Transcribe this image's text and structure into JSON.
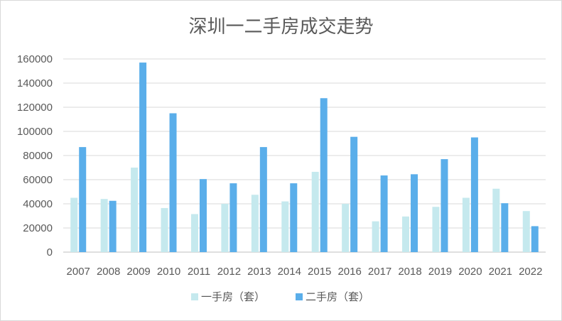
{
  "chart_data": {
    "type": "bar",
    "title": "深圳一二手房成交走势",
    "categories": [
      "2007",
      "2008",
      "2009",
      "2010",
      "2011",
      "2012",
      "2013",
      "2014",
      "2015",
      "2016",
      "2017",
      "2018",
      "2019",
      "2020",
      "2021",
      "2022"
    ],
    "series": [
      {
        "name": "一手房（套）",
        "color": "#c5e9ee",
        "values": [
          45000,
          44000,
          70000,
          36500,
          31500,
          40000,
          47500,
          42000,
          66500,
          40000,
          25500,
          29500,
          37500,
          45000,
          52500,
          34000
        ]
      },
      {
        "name": "二手房（套）",
        "color": "#5aaeea",
        "values": [
          87000,
          42500,
          157000,
          115000,
          60500,
          57000,
          87000,
          57000,
          127500,
          95500,
          63500,
          64500,
          77000,
          95000,
          40500,
          21500
        ]
      }
    ],
    "ylim": [
      0,
      160000
    ],
    "yticks": [
      "0",
      "20000",
      "40000",
      "60000",
      "80000",
      "100000",
      "120000",
      "140000",
      "160000"
    ],
    "grid": true,
    "legend_position": "bottom"
  }
}
